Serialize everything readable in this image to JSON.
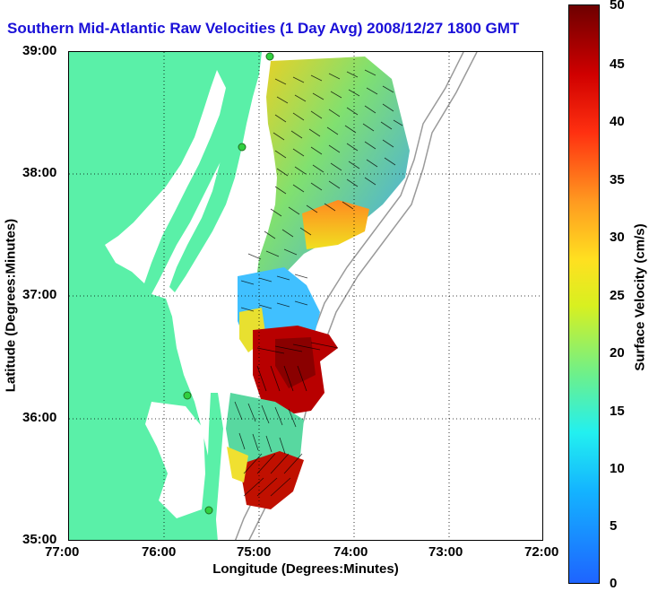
{
  "title": "Southern Mid-Atlantic Raw Velocities (1 Day Avg) 2008/12/27 1800 GMT",
  "y_axis": {
    "label": "Latitude (Degrees:Minutes)",
    "ticks": [
      "39:00",
      "38:00",
      "37:00",
      "36:00",
      "35:00"
    ]
  },
  "x_axis": {
    "label": "Longitude (Degrees:Minutes)",
    "ticks": [
      "77:00",
      "76:00",
      "75:00",
      "74:00",
      "73:00",
      "72:00"
    ]
  },
  "colorbar": {
    "label": "Surface Velocity (cm/s)",
    "ticks": [
      "50",
      "45",
      "40",
      "35",
      "30",
      "25",
      "20",
      "15",
      "10",
      "5",
      "0"
    ]
  },
  "colors": {
    "land": "#5af0a8",
    "title": "#1a10d8",
    "station": "#30d040"
  }
}
